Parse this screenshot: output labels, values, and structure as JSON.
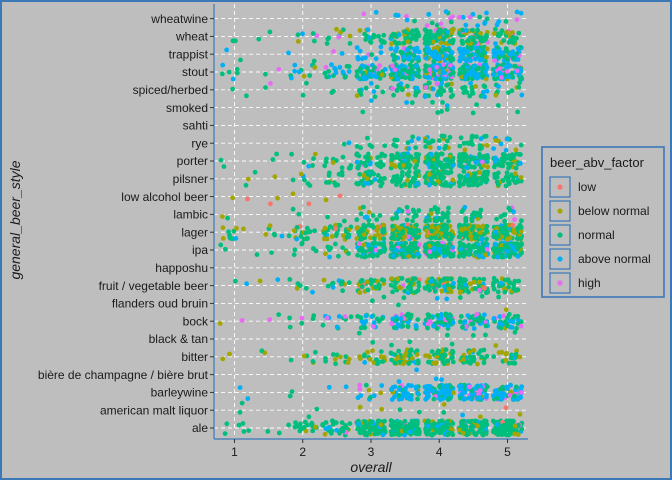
{
  "chart_data": {
    "type": "scatter",
    "xlabel": "overall",
    "ylabel": "general_beer_style",
    "xlim": [
      0.7,
      5.3
    ],
    "x_ticks": [
      1,
      2,
      3,
      4,
      5
    ],
    "x_tick_labels": [
      "1",
      "2",
      "3",
      "4",
      "5"
    ],
    "x_values": [
      1,
      1.5,
      2,
      2.5,
      3,
      3.5,
      4,
      4.5,
      5
    ],
    "jitter": true,
    "grid": true,
    "legend_position": "right",
    "legend": {
      "title": "beer_abv_factor",
      "entries": [
        {
          "label": "low",
          "color": "#f8766d"
        },
        {
          "label": "below normal",
          "color": "#a3a500"
        },
        {
          "label": "normal",
          "color": "#00bf7d"
        },
        {
          "label": "above normal",
          "color": "#00b0f6"
        },
        {
          "label": "high",
          "color": "#e76bf3"
        }
      ]
    },
    "categories": [
      "ale",
      "american malt liquor",
      "barleywine",
      "bière de champagne / bière brut",
      "bitter",
      "black & tan",
      "bock",
      "flanders oud bruin",
      "fruit / vegetable beer",
      "happoshu",
      "ipa",
      "lager",
      "lambic",
      "low alcohol beer",
      "pilsner",
      "porter",
      "rye",
      "sahti",
      "smoked",
      "spiced/herbed",
      "stout",
      "trappist",
      "wheat",
      "wheatwine"
    ],
    "density": [
      [
        2,
        1,
        4,
        5,
        9,
        9,
        9,
        9,
        9
      ],
      [
        1,
        0,
        1,
        0,
        1,
        1,
        1,
        1,
        1
      ],
      [
        1,
        0,
        1,
        1,
        3,
        6,
        9,
        8,
        7
      ],
      [
        0,
        0,
        0,
        0,
        0,
        1,
        1,
        0,
        0
      ],
      [
        1,
        1,
        2,
        3,
        4,
        6,
        6,
        5,
        4
      ],
      [
        0,
        0,
        0,
        0,
        1,
        1,
        1,
        1,
        1
      ],
      [
        1,
        1,
        2,
        3,
        4,
        6,
        7,
        6,
        5
      ],
      [
        0,
        0,
        0,
        0,
        1,
        1,
        1,
        1,
        1
      ],
      [
        1,
        1,
        2,
        3,
        5,
        6,
        7,
        6,
        5
      ],
      [
        0,
        0,
        0,
        0,
        0,
        0,
        0,
        0,
        0
      ],
      [
        1,
        1,
        2,
        3,
        7,
        9,
        9,
        9,
        9
      ],
      [
        3,
        2,
        4,
        5,
        7,
        9,
        9,
        9,
        8
      ],
      [
        1,
        0,
        1,
        1,
        3,
        4,
        5,
        4,
        3
      ],
      [
        1,
        1,
        1,
        1,
        0,
        0,
        0,
        0,
        0
      ],
      [
        1,
        1,
        2,
        3,
        5,
        6,
        7,
        7,
        5
      ],
      [
        1,
        1,
        2,
        3,
        5,
        7,
        8,
        7,
        6
      ],
      [
        0,
        0,
        0,
        1,
        2,
        3,
        4,
        4,
        3
      ],
      [
        0,
        0,
        0,
        0,
        0,
        0,
        0,
        0,
        0
      ],
      [
        0,
        0,
        0,
        0,
        1,
        1,
        2,
        1,
        1
      ],
      [
        1,
        1,
        1,
        1,
        3,
        4,
        5,
        4,
        3
      ],
      [
        2,
        1,
        3,
        4,
        7,
        9,
        9,
        9,
        8
      ],
      [
        1,
        0,
        1,
        1,
        3,
        6,
        8,
        8,
        7
      ],
      [
        1,
        1,
        2,
        3,
        4,
        6,
        8,
        7,
        5
      ],
      [
        0,
        0,
        0,
        0,
        1,
        2,
        3,
        3,
        2
      ]
    ],
    "mix": [
      [
        0.01,
        0.08,
        0.8,
        0.09,
        0.02
      ],
      [
        0.05,
        0.3,
        0.6,
        0.05,
        0.0
      ],
      [
        0.0,
        0.05,
        0.25,
        0.6,
        0.1
      ],
      [
        0.0,
        0.0,
        0.0,
        1.0,
        0.0
      ],
      [
        0.0,
        0.35,
        0.6,
        0.05,
        0.0
      ],
      [
        0.0,
        0.1,
        0.8,
        0.1,
        0.0
      ],
      [
        0.0,
        0.05,
        0.55,
        0.3,
        0.1
      ],
      [
        0.0,
        0.1,
        0.8,
        0.1,
        0.0
      ],
      [
        0.02,
        0.2,
        0.7,
        0.06,
        0.02
      ],
      [
        0.0,
        0.0,
        1.0,
        0.0,
        0.0
      ],
      [
        0.0,
        0.05,
        0.7,
        0.2,
        0.05
      ],
      [
        0.02,
        0.3,
        0.63,
        0.04,
        0.01
      ],
      [
        0.0,
        0.15,
        0.7,
        0.1,
        0.05
      ],
      [
        0.7,
        0.2,
        0.1,
        0.0,
        0.0
      ],
      [
        0.0,
        0.15,
        0.8,
        0.05,
        0.0
      ],
      [
        0.0,
        0.1,
        0.8,
        0.08,
        0.02
      ],
      [
        0.0,
        0.1,
        0.75,
        0.15,
        0.0
      ],
      [
        0.0,
        0.0,
        1.0,
        0.0,
        0.0
      ],
      [
        0.0,
        0.1,
        0.8,
        0.1,
        0.0
      ],
      [
        0.0,
        0.15,
        0.65,
        0.15,
        0.05
      ],
      [
        0.0,
        0.05,
        0.45,
        0.43,
        0.07
      ],
      [
        0.0,
        0.05,
        0.25,
        0.6,
        0.1
      ],
      [
        0.0,
        0.2,
        0.65,
        0.1,
        0.05
      ],
      [
        0.0,
        0.0,
        0.35,
        0.4,
        0.25
      ]
    ]
  }
}
